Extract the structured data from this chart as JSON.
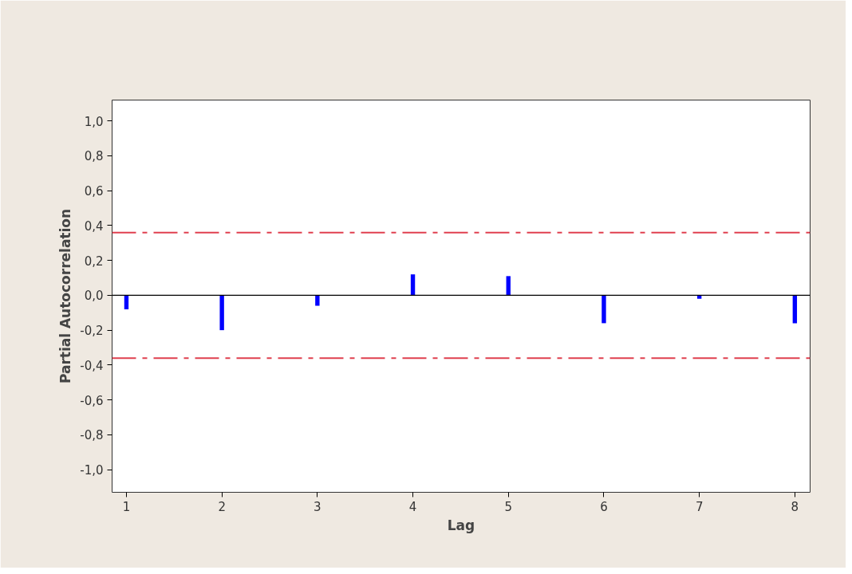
{
  "chart_data": {
    "type": "bar",
    "xlabel": "Lag",
    "ylabel": "Partial Autocorrelation",
    "x": [
      1,
      2,
      3,
      4,
      5,
      6,
      7,
      8
    ],
    "series": [
      {
        "color": "#0000ff",
        "values": [
          -0.08,
          -0.2,
          -0.06,
          0.12,
          0.11,
          -0.16,
          -0.02,
          -0.16
        ]
      }
    ],
    "xlim": [
      0.85,
      8.16
    ],
    "xticks": [
      1,
      2,
      3,
      4,
      5,
      6,
      7,
      8
    ],
    "ylim": [
      -1.13,
      1.12
    ],
    "yticks": [
      {
        "value": -1.0,
        "label": "-1,0"
      },
      {
        "value": -0.8,
        "label": "-0,8"
      },
      {
        "value": -0.6,
        "label": "-0,6"
      },
      {
        "value": -0.4,
        "label": "-0,4"
      },
      {
        "value": -0.2,
        "label": "-0,2"
      },
      {
        "value": 0.0,
        "label": "0,0"
      },
      {
        "value": 0.2,
        "label": "0,2"
      },
      {
        "value": 0.4,
        "label": "0,4"
      },
      {
        "value": 0.6,
        "label": "0,6"
      },
      {
        "value": 0.8,
        "label": "0,8"
      },
      {
        "value": 1.0,
        "label": "1,0"
      }
    ],
    "ref_lines": [
      {
        "axis": "y",
        "value": 0.0,
        "color": "#000000",
        "line_style": "solid"
      },
      {
        "axis": "y",
        "value": 0.36,
        "color": "#e0404f",
        "line_style": "dashdot"
      },
      {
        "axis": "y",
        "value": -0.36,
        "color": "#e0404f",
        "line_style": "dashdot"
      }
    ],
    "grid": false
  }
}
